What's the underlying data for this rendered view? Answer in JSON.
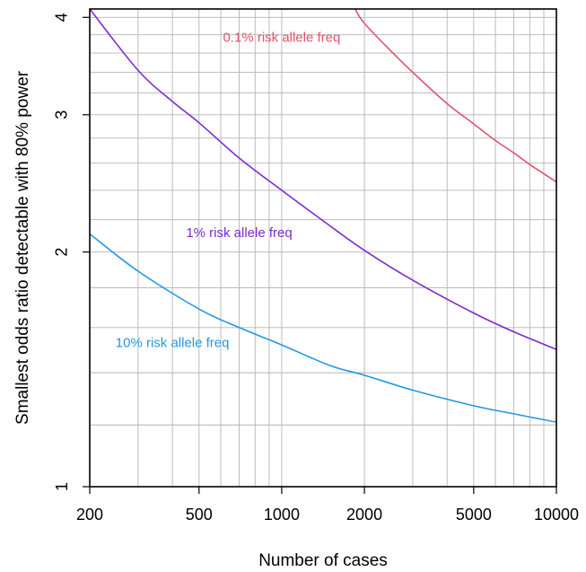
{
  "chart_data": {
    "type": "line",
    "title": "",
    "xlabel": "Number of cases",
    "ylabel": "Smallest odds ratio detectable with 80% power",
    "x_scale": "log",
    "y_scale": "log",
    "xlim": [
      200,
      10000
    ],
    "ylim": [
      1,
      4.1
    ],
    "grid": true,
    "x_ticks": [
      200,
      500,
      1000,
      2000,
      5000,
      10000
    ],
    "x_tick_labels": [
      "200",
      "500",
      "1000",
      "2000",
      "5000",
      "10000"
    ],
    "y_ticks": [
      1,
      2,
      3,
      4
    ],
    "y_tick_labels": [
      "1",
      "2",
      "3",
      "4"
    ],
    "x_minor_grid": [
      300,
      400,
      600,
      700,
      800,
      900,
      3000,
      4000,
      6000,
      7000,
      8000,
      9000
    ],
    "y_minor_grid": [
      1.2,
      1.4,
      1.6,
      1.8,
      2.2,
      2.4,
      2.6,
      2.8,
      3.2,
      3.4,
      3.6,
      3.8
    ],
    "series": [
      {
        "name": "0.1% risk allele freq",
        "color": "#df536b",
        "label_at": [
          1000,
          3.72
        ],
        "x": [
          1850,
          2000,
          2500,
          3000,
          4000,
          5000,
          6000,
          7000,
          8000,
          9000,
          10000
        ],
        "y": [
          4.1,
          3.93,
          3.62,
          3.4,
          3.1,
          2.92,
          2.78,
          2.68,
          2.59,
          2.52,
          2.46
        ]
      },
      {
        "name": "1% risk allele freq",
        "color": "#7b2bcf",
        "label_at": [
          700,
          2.09
        ],
        "x": [
          200,
          300,
          400,
          500,
          700,
          1000,
          1500,
          2000,
          3000,
          5000,
          7000,
          10000
        ],
        "y": [
          4.1,
          3.42,
          3.12,
          2.93,
          2.64,
          2.4,
          2.16,
          2.01,
          1.84,
          1.67,
          1.58,
          1.5
        ]
      },
      {
        "name": "10% risk allele freq",
        "color": "#2297e6",
        "label_at": [
          400,
          1.51
        ],
        "x": [
          200,
          300,
          500,
          700,
          1000,
          1500,
          2000,
          3000,
          5000,
          7000,
          10000
        ],
        "y": [
          2.11,
          1.89,
          1.69,
          1.6,
          1.52,
          1.43,
          1.39,
          1.33,
          1.27,
          1.24,
          1.21
        ]
      }
    ]
  }
}
